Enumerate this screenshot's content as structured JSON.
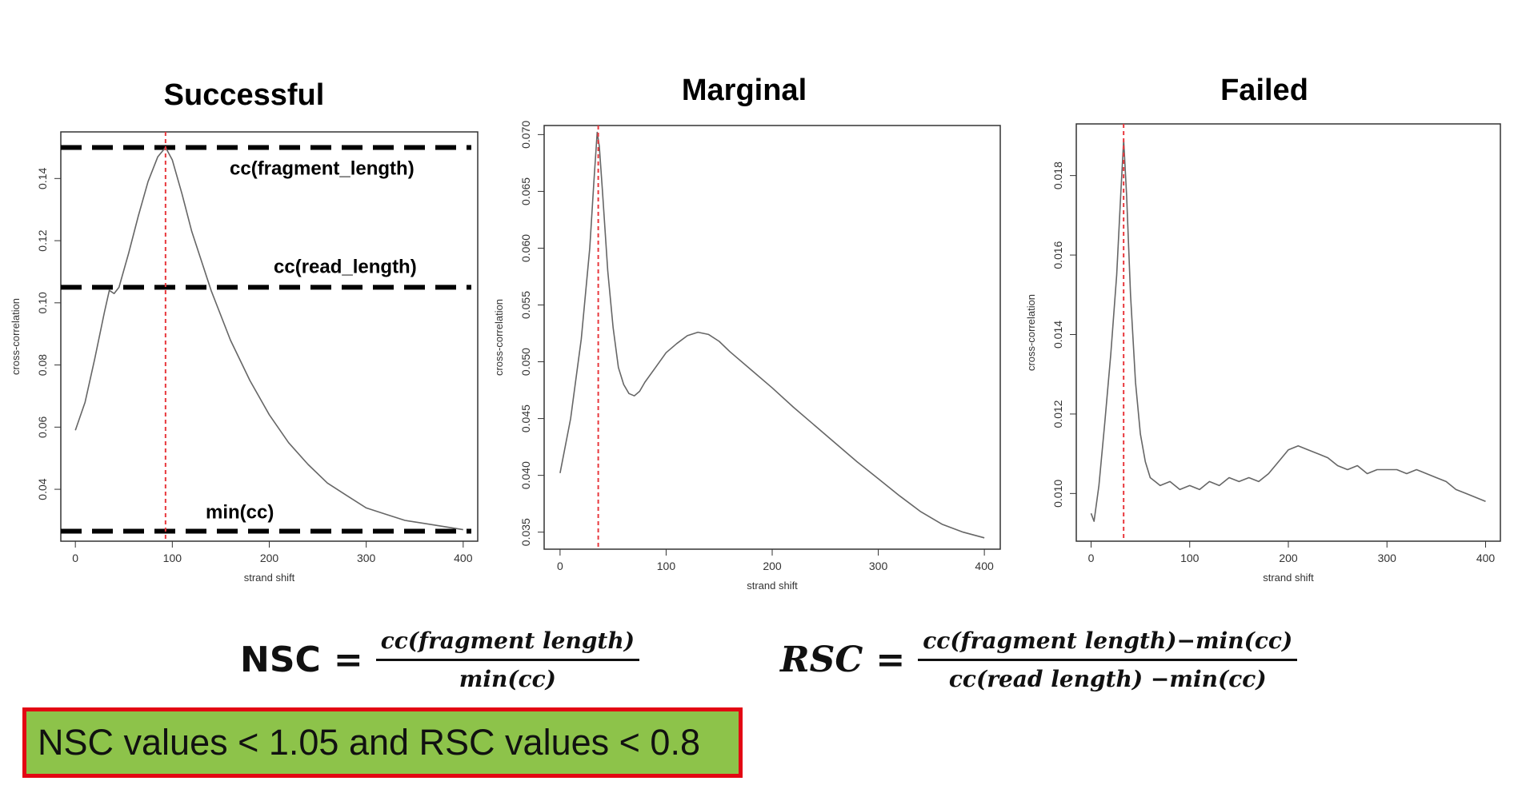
{
  "chart_data": [
    {
      "type": "line",
      "title": "Successful",
      "xlabel": "strand shift",
      "ylabel": "cross-correlation",
      "xlim": [
        -15,
        415
      ],
      "ylim": [
        0.0233,
        0.155
      ],
      "xticks": [
        "0",
        "100",
        "200",
        "300",
        "400"
      ],
      "yticks": [
        "0.04",
        "0.06",
        "0.08",
        "0.10",
        "0.12",
        "0.14"
      ],
      "series": [
        {
          "name": "cross-correlation",
          "x": [
            0,
            10,
            20,
            30,
            35,
            40,
            45,
            55,
            65,
            75,
            85,
            93,
            100,
            110,
            120,
            140,
            160,
            180,
            200,
            220,
            240,
            260,
            280,
            300,
            320,
            340,
            360,
            380,
            400
          ],
          "y": [
            0.059,
            0.068,
            0.082,
            0.097,
            0.104,
            0.103,
            0.105,
            0.116,
            0.128,
            0.139,
            0.147,
            0.15,
            0.146,
            0.135,
            0.123,
            0.104,
            0.088,
            0.075,
            0.064,
            0.055,
            0.048,
            0.042,
            0.038,
            0.034,
            0.032,
            0.03,
            0.029,
            0.028,
            0.027
          ]
        }
      ],
      "fragment_shift": 93,
      "reference_lines": [
        {
          "label": "cc(fragment_length)",
          "y": 0.15
        },
        {
          "label": "cc(read_length)",
          "y": 0.105
        },
        {
          "label": "min(cc)",
          "y": 0.0265
        }
      ]
    },
    {
      "type": "line",
      "title": "Marginal",
      "xlabel": "strand shift",
      "ylabel": "cross-correlation",
      "xlim": [
        -15,
        415
      ],
      "ylim": [
        0.0335,
        0.0708
      ],
      "xticks": [
        "0",
        "100",
        "200",
        "300",
        "400"
      ],
      "yticks": [
        "0.035",
        "0.040",
        "0.045",
        "0.050",
        "0.055",
        "0.060",
        "0.065",
        "0.070"
      ],
      "series": [
        {
          "name": "cross-correlation",
          "x": [
            0,
            10,
            20,
            28,
            32,
            35,
            37,
            40,
            45,
            50,
            55,
            60,
            65,
            70,
            75,
            80,
            90,
            100,
            110,
            120,
            130,
            140,
            150,
            160,
            180,
            200,
            220,
            240,
            260,
            280,
            300,
            320,
            340,
            360,
            380,
            400
          ],
          "y": [
            0.0402,
            0.045,
            0.052,
            0.06,
            0.066,
            0.0702,
            0.069,
            0.065,
            0.058,
            0.053,
            0.0495,
            0.048,
            0.0472,
            0.047,
            0.0474,
            0.0482,
            0.0495,
            0.0508,
            0.0516,
            0.0523,
            0.0526,
            0.0524,
            0.0518,
            0.0509,
            0.0493,
            0.0477,
            0.046,
            0.0444,
            0.0428,
            0.0412,
            0.0397,
            0.0382,
            0.0368,
            0.0357,
            0.035,
            0.0345
          ]
        }
      ],
      "fragment_shift": 36
    },
    {
      "type": "line",
      "title": "Failed",
      "xlabel": "strand shift",
      "ylabel": "cross-correlation",
      "xlim": [
        -15,
        415
      ],
      "ylim": [
        0.0088,
        0.0193
      ],
      "xticks": [
        "0",
        "100",
        "200",
        "300",
        "400"
      ],
      "yticks": [
        "0.010",
        "0.012",
        "0.014",
        "0.016",
        "0.018"
      ],
      "series": [
        {
          "name": "cross-correlation",
          "x": [
            0,
            3,
            8,
            14,
            20,
            26,
            30,
            33,
            36,
            40,
            45,
            50,
            55,
            60,
            65,
            70,
            80,
            90,
            100,
            110,
            120,
            130,
            140,
            150,
            160,
            170,
            180,
            190,
            200,
            210,
            220,
            230,
            240,
            250,
            260,
            270,
            280,
            290,
            300,
            310,
            320,
            330,
            340,
            350,
            360,
            370,
            380,
            390,
            400
          ],
          "y": [
            0.0095,
            0.0093,
            0.0102,
            0.0118,
            0.0135,
            0.0155,
            0.0175,
            0.0189,
            0.0175,
            0.015,
            0.0128,
            0.0115,
            0.0108,
            0.0104,
            0.0103,
            0.0102,
            0.0103,
            0.0101,
            0.0102,
            0.0101,
            0.0103,
            0.0102,
            0.0104,
            0.0103,
            0.0104,
            0.0103,
            0.0105,
            0.0108,
            0.0111,
            0.0112,
            0.0111,
            0.011,
            0.0109,
            0.0107,
            0.0106,
            0.0107,
            0.0105,
            0.0106,
            0.0106,
            0.0106,
            0.0105,
            0.0106,
            0.0105,
            0.0104,
            0.0103,
            0.0101,
            0.01,
            0.0099,
            0.0098
          ]
        }
      ],
      "fragment_shift": 33
    }
  ],
  "formulas": {
    "nsc": {
      "lhs": "NSC",
      "eq": "=",
      "numerator": "cc(fragment length)",
      "denominator": "min(cc)"
    },
    "rsc": {
      "lhs": "RSC",
      "eq": "=",
      "numerator": "cc(fragment length)−min(cc)",
      "denominator": "cc(read length) −min(cc)"
    }
  },
  "criteria": {
    "text": "NSC values < 1.05 and RSC values < 0.8"
  },
  "colors": {
    "box_fill": "#8dc34a",
    "box_border": "#e30613",
    "fragment_line": "#e8383d",
    "curve": "#666666",
    "axes": "#333333"
  }
}
